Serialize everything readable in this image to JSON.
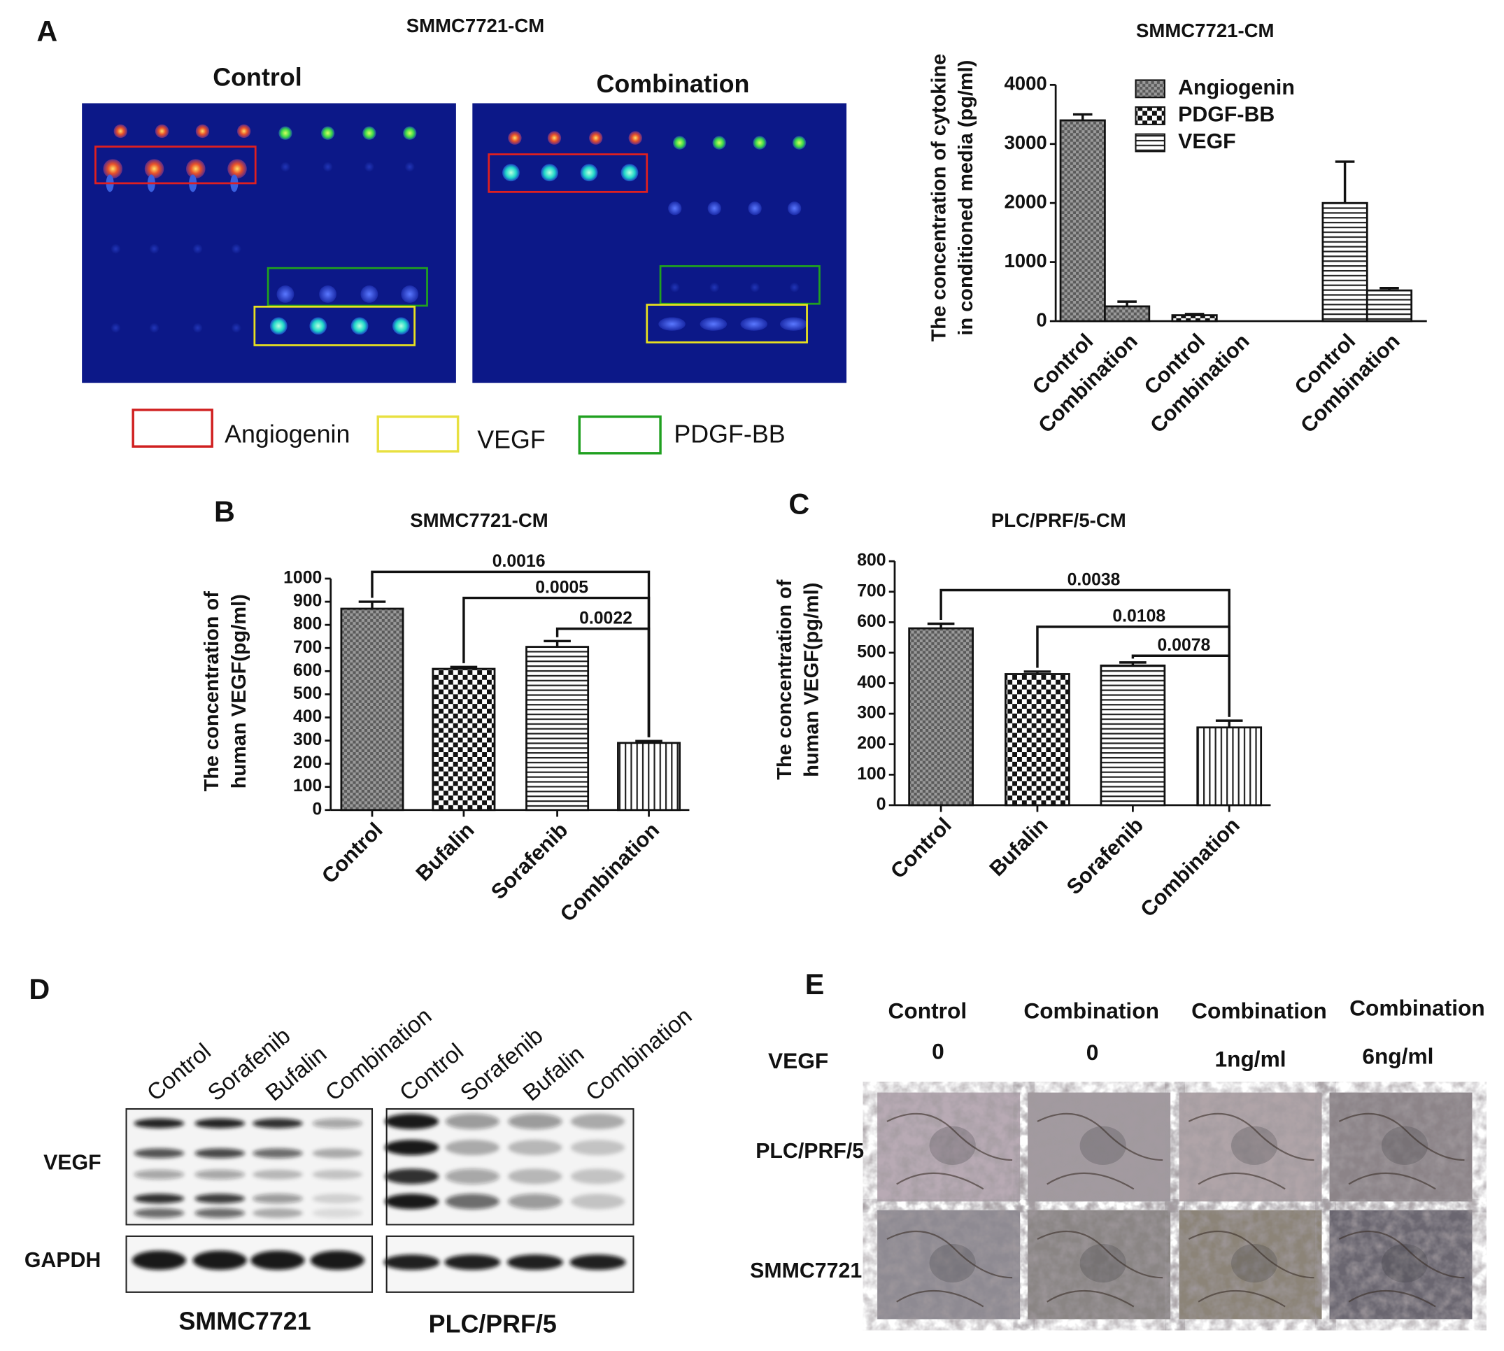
{
  "panel_labels": [
    "A",
    "B",
    "C",
    "D",
    "E"
  ],
  "array": {
    "title": "SMMC7721-CM",
    "images": [
      "Control",
      "Combination"
    ],
    "legend": [
      "Angiogenin",
      "VEGF",
      "PDGF-BB"
    ]
  },
  "chart_data": [
    {
      "type": "grouped-bar",
      "title": "SMMC7721-CM",
      "y_label": [
        "The concentration of cytokine",
        "in conditioned media (pg/ml)"
      ],
      "categories": [
        "Control",
        "Combination"
      ],
      "series": [
        {
          "name": "Angiogenin",
          "color": "#7a7a7a",
          "pattern": "dense-check",
          "values": [
            3400,
            250
          ],
          "errors": [
            100,
            80
          ]
        },
        {
          "name": "PDGF-BB",
          "color": "#1a1a1a",
          "pattern": "checker",
          "values": [
            100,
            0
          ],
          "errors": [
            20,
            0
          ]
        },
        {
          "name": "VEGF",
          "color": "#333333",
          "pattern": "horizontal-lines",
          "values": [
            2000,
            520
          ],
          "errors": [
            700,
            40
          ]
        }
      ],
      "ylim": [
        0,
        4000
      ],
      "yticks": [
        0,
        1000,
        2000,
        3000,
        4000
      ],
      "grid": false,
      "legend": "top-right"
    },
    {
      "type": "bar",
      "title": "SMMC7721-CM",
      "y_label": [
        "The concentration of",
        "human VEGF(pg/ml)"
      ],
      "categories": [
        "Control",
        "Bufalin",
        "Sorafenib",
        "Combination"
      ],
      "values": [
        870,
        610,
        705,
        290
      ],
      "errors": [
        30,
        8,
        25,
        8
      ],
      "patterns": [
        "dense-check",
        "checker",
        "horizontal-lines",
        "vertical-lines"
      ],
      "color": "#1a1a1a",
      "ylim": [
        0,
        1000
      ],
      "yticks": [
        0,
        100,
        200,
        300,
        400,
        500,
        600,
        700,
        800,
        900,
        1000
      ],
      "grid": false,
      "comparisons": [
        {
          "from": "Control",
          "to": "Combination",
          "p": 0.0016
        },
        {
          "from": "Bufalin",
          "to": "Combination",
          "p": 0.0005
        },
        {
          "from": "Sorafenib",
          "to": "Combination",
          "p": 0.0022
        }
      ]
    },
    {
      "type": "bar",
      "title": "PLC/PRF/5-CM",
      "y_label": [
        "The concentration of",
        "human VEGF(pg/ml)"
      ],
      "categories": [
        "Control",
        "Bufalin",
        "Sorafenib",
        "Combination"
      ],
      "values": [
        580,
        430,
        458,
        255
      ],
      "errors": [
        15,
        8,
        10,
        22
      ],
      "patterns": [
        "dense-check",
        "checker",
        "horizontal-lines",
        "vertical-lines"
      ],
      "color": "#1a1a1a",
      "ylim": [
        0,
        800
      ],
      "yticks": [
        0,
        100,
        200,
        300,
        400,
        500,
        600,
        700,
        800
      ],
      "grid": false,
      "comparisons": [
        {
          "from": "Control",
          "to": "Combination",
          "p": 0.0038
        },
        {
          "from": "Bufalin",
          "to": "Combination",
          "p": 0.0108
        },
        {
          "from": "Sorafenib",
          "to": "Combination",
          "p": 0.0078
        }
      ]
    }
  ],
  "western": {
    "lanes": [
      "Control",
      "Sorafenib",
      "Bufalin",
      "Combination"
    ],
    "rows": [
      "VEGF",
      "GAPDH"
    ],
    "cells": [
      "SMMC7721",
      "PLC/PRF/5"
    ]
  },
  "tube": {
    "columns": [
      "Control",
      "Combination",
      "Combination",
      "Combination"
    ],
    "vegf_label": "VEGF",
    "vegf_doses": [
      "0",
      "0",
      "1ng/ml",
      "6ng/ml"
    ],
    "rows": [
      "PLC/PRF/5",
      "SMMC7721"
    ]
  }
}
